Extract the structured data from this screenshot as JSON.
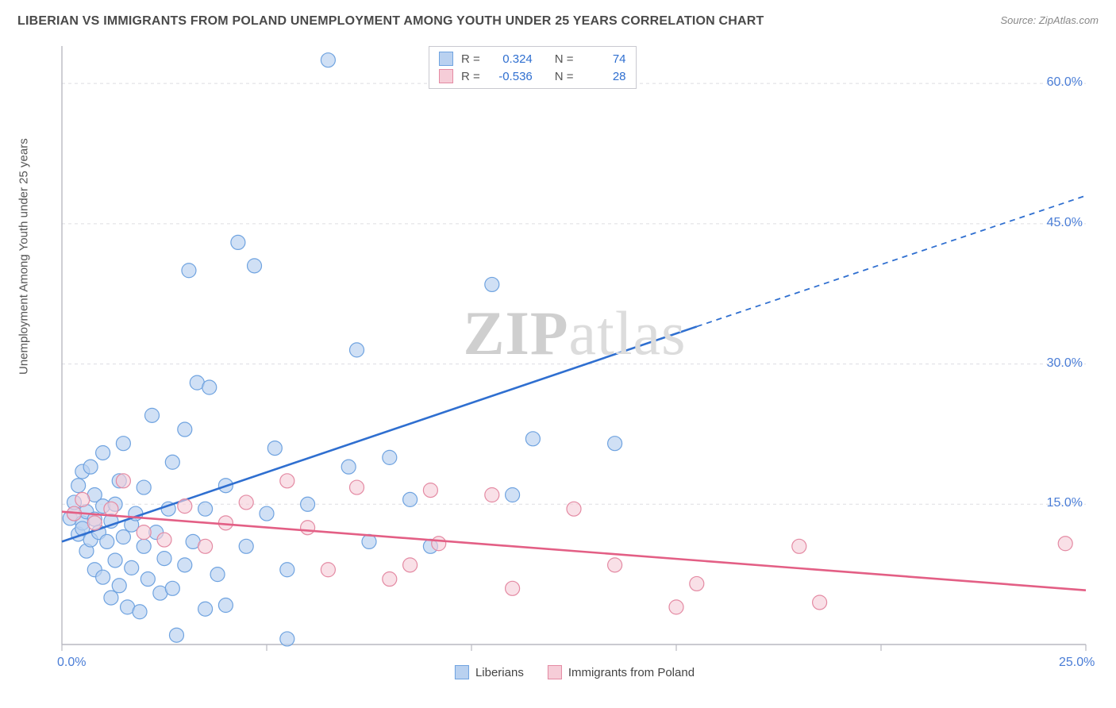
{
  "title": "LIBERIAN VS IMMIGRANTS FROM POLAND UNEMPLOYMENT AMONG YOUTH UNDER 25 YEARS CORRELATION CHART",
  "source": "Source: ZipAtlas.com",
  "ylabel": "Unemployment Among Youth under 25 years",
  "watermark_a": "ZIP",
  "watermark_b": "atlas",
  "chart": {
    "type": "scatter",
    "xlim": [
      0,
      25
    ],
    "ylim": [
      0,
      64
    ],
    "y_gridlines": [
      15,
      30,
      45,
      60
    ],
    "x_ticks": [
      0,
      5,
      10,
      15,
      20,
      25
    ],
    "x_tick_labels": {
      "0": "0.0%",
      "25": "25.0%"
    },
    "y_tick_labels": {
      "15": "15.0%",
      "30": "30.0%",
      "45": "45.0%",
      "60": "60.0%"
    },
    "background_color": "#ffffff",
    "grid_color": "#dddde2",
    "axis_color": "#b9b9c2",
    "xaxis_label_color": "#4a7dd6",
    "yaxis_label_color": "#4a7dd6",
    "series": [
      {
        "name": "Liberians",
        "color_fill": "#b9d1f0",
        "color_stroke": "#6fa3e0",
        "color_line": "#2f6fd0",
        "marker_radius": 9,
        "marker_opacity": 0.68,
        "r_label": "R =",
        "r_value": "0.324",
        "n_label": "N =",
        "n_value": "74",
        "trend": {
          "x1": 0,
          "y1": 11.0,
          "x2": 15.5,
          "y2": 34.0,
          "dash_x2": 25,
          "dash_y2": 48.0
        },
        "points": [
          [
            0.2,
            13.5
          ],
          [
            0.3,
            14.0
          ],
          [
            0.3,
            15.2
          ],
          [
            0.4,
            11.8
          ],
          [
            0.4,
            17.0
          ],
          [
            0.5,
            13.0
          ],
          [
            0.5,
            12.4
          ],
          [
            0.5,
            18.5
          ],
          [
            0.6,
            10.0
          ],
          [
            0.6,
            14.2
          ],
          [
            0.7,
            11.2
          ],
          [
            0.7,
            19.0
          ],
          [
            0.8,
            8.0
          ],
          [
            0.8,
            13.4
          ],
          [
            0.8,
            16.0
          ],
          [
            0.9,
            12.0
          ],
          [
            1.0,
            7.2
          ],
          [
            1.0,
            14.8
          ],
          [
            1.0,
            20.5
          ],
          [
            1.1,
            11.0
          ],
          [
            1.2,
            5.0
          ],
          [
            1.2,
            13.2
          ],
          [
            1.3,
            9.0
          ],
          [
            1.3,
            15.0
          ],
          [
            1.4,
            6.3
          ],
          [
            1.4,
            17.5
          ],
          [
            1.5,
            11.5
          ],
          [
            1.5,
            21.5
          ],
          [
            1.6,
            4.0
          ],
          [
            1.7,
            12.8
          ],
          [
            1.7,
            8.2
          ],
          [
            1.8,
            14.0
          ],
          [
            1.9,
            3.5
          ],
          [
            2.0,
            10.5
          ],
          [
            2.0,
            16.8
          ],
          [
            2.1,
            7.0
          ],
          [
            2.2,
            24.5
          ],
          [
            2.3,
            12.0
          ],
          [
            2.4,
            5.5
          ],
          [
            2.5,
            9.2
          ],
          [
            2.6,
            14.5
          ],
          [
            2.7,
            19.5
          ],
          [
            2.7,
            6.0
          ],
          [
            2.8,
            1.0
          ],
          [
            3.0,
            8.5
          ],
          [
            3.0,
            23.0
          ],
          [
            3.1,
            40.0
          ],
          [
            3.2,
            11.0
          ],
          [
            3.3,
            28.0
          ],
          [
            3.5,
            14.5
          ],
          [
            3.5,
            3.8
          ],
          [
            3.6,
            27.5
          ],
          [
            3.8,
            7.5
          ],
          [
            4.0,
            17.0
          ],
          [
            4.0,
            4.2
          ],
          [
            4.3,
            43.0
          ],
          [
            4.5,
            10.5
          ],
          [
            4.7,
            40.5
          ],
          [
            5.0,
            14.0
          ],
          [
            5.2,
            21.0
          ],
          [
            5.5,
            8.0
          ],
          [
            5.5,
            0.6
          ],
          [
            6.0,
            15.0
          ],
          [
            6.5,
            62.5
          ],
          [
            7.0,
            19.0
          ],
          [
            7.2,
            31.5
          ],
          [
            7.5,
            11.0
          ],
          [
            8.0,
            20.0
          ],
          [
            8.5,
            15.5
          ],
          [
            9.0,
            10.5
          ],
          [
            10.5,
            38.5
          ],
          [
            11.0,
            16.0
          ],
          [
            11.5,
            22.0
          ],
          [
            13.5,
            21.5
          ]
        ]
      },
      {
        "name": "Immigrants from Poland",
        "color_fill": "#f6cdd8",
        "color_stroke": "#e48aa3",
        "color_line": "#e35f85",
        "marker_radius": 9,
        "marker_opacity": 0.62,
        "r_label": "R =",
        "r_value": "-0.536",
        "n_label": "N =",
        "n_value": "28",
        "trend": {
          "x1": 0,
          "y1": 14.2,
          "x2": 25,
          "y2": 5.8
        },
        "points": [
          [
            0.3,
            14.0
          ],
          [
            0.5,
            15.5
          ],
          [
            0.8,
            13.0
          ],
          [
            1.2,
            14.5
          ],
          [
            1.5,
            17.5
          ],
          [
            2.0,
            12.0
          ],
          [
            2.5,
            11.2
          ],
          [
            3.0,
            14.8
          ],
          [
            3.5,
            10.5
          ],
          [
            4.0,
            13.0
          ],
          [
            4.5,
            15.2
          ],
          [
            5.5,
            17.5
          ],
          [
            6.0,
            12.5
          ],
          [
            6.5,
            8.0
          ],
          [
            7.2,
            16.8
          ],
          [
            8.0,
            7.0
          ],
          [
            8.5,
            8.5
          ],
          [
            9.0,
            16.5
          ],
          [
            9.2,
            10.8
          ],
          [
            10.5,
            16.0
          ],
          [
            11.0,
            6.0
          ],
          [
            12.5,
            14.5
          ],
          [
            13.5,
            8.5
          ],
          [
            15.0,
            4.0
          ],
          [
            15.5,
            6.5
          ],
          [
            18.0,
            10.5
          ],
          [
            18.5,
            4.5
          ],
          [
            24.5,
            10.8
          ]
        ]
      }
    ]
  }
}
